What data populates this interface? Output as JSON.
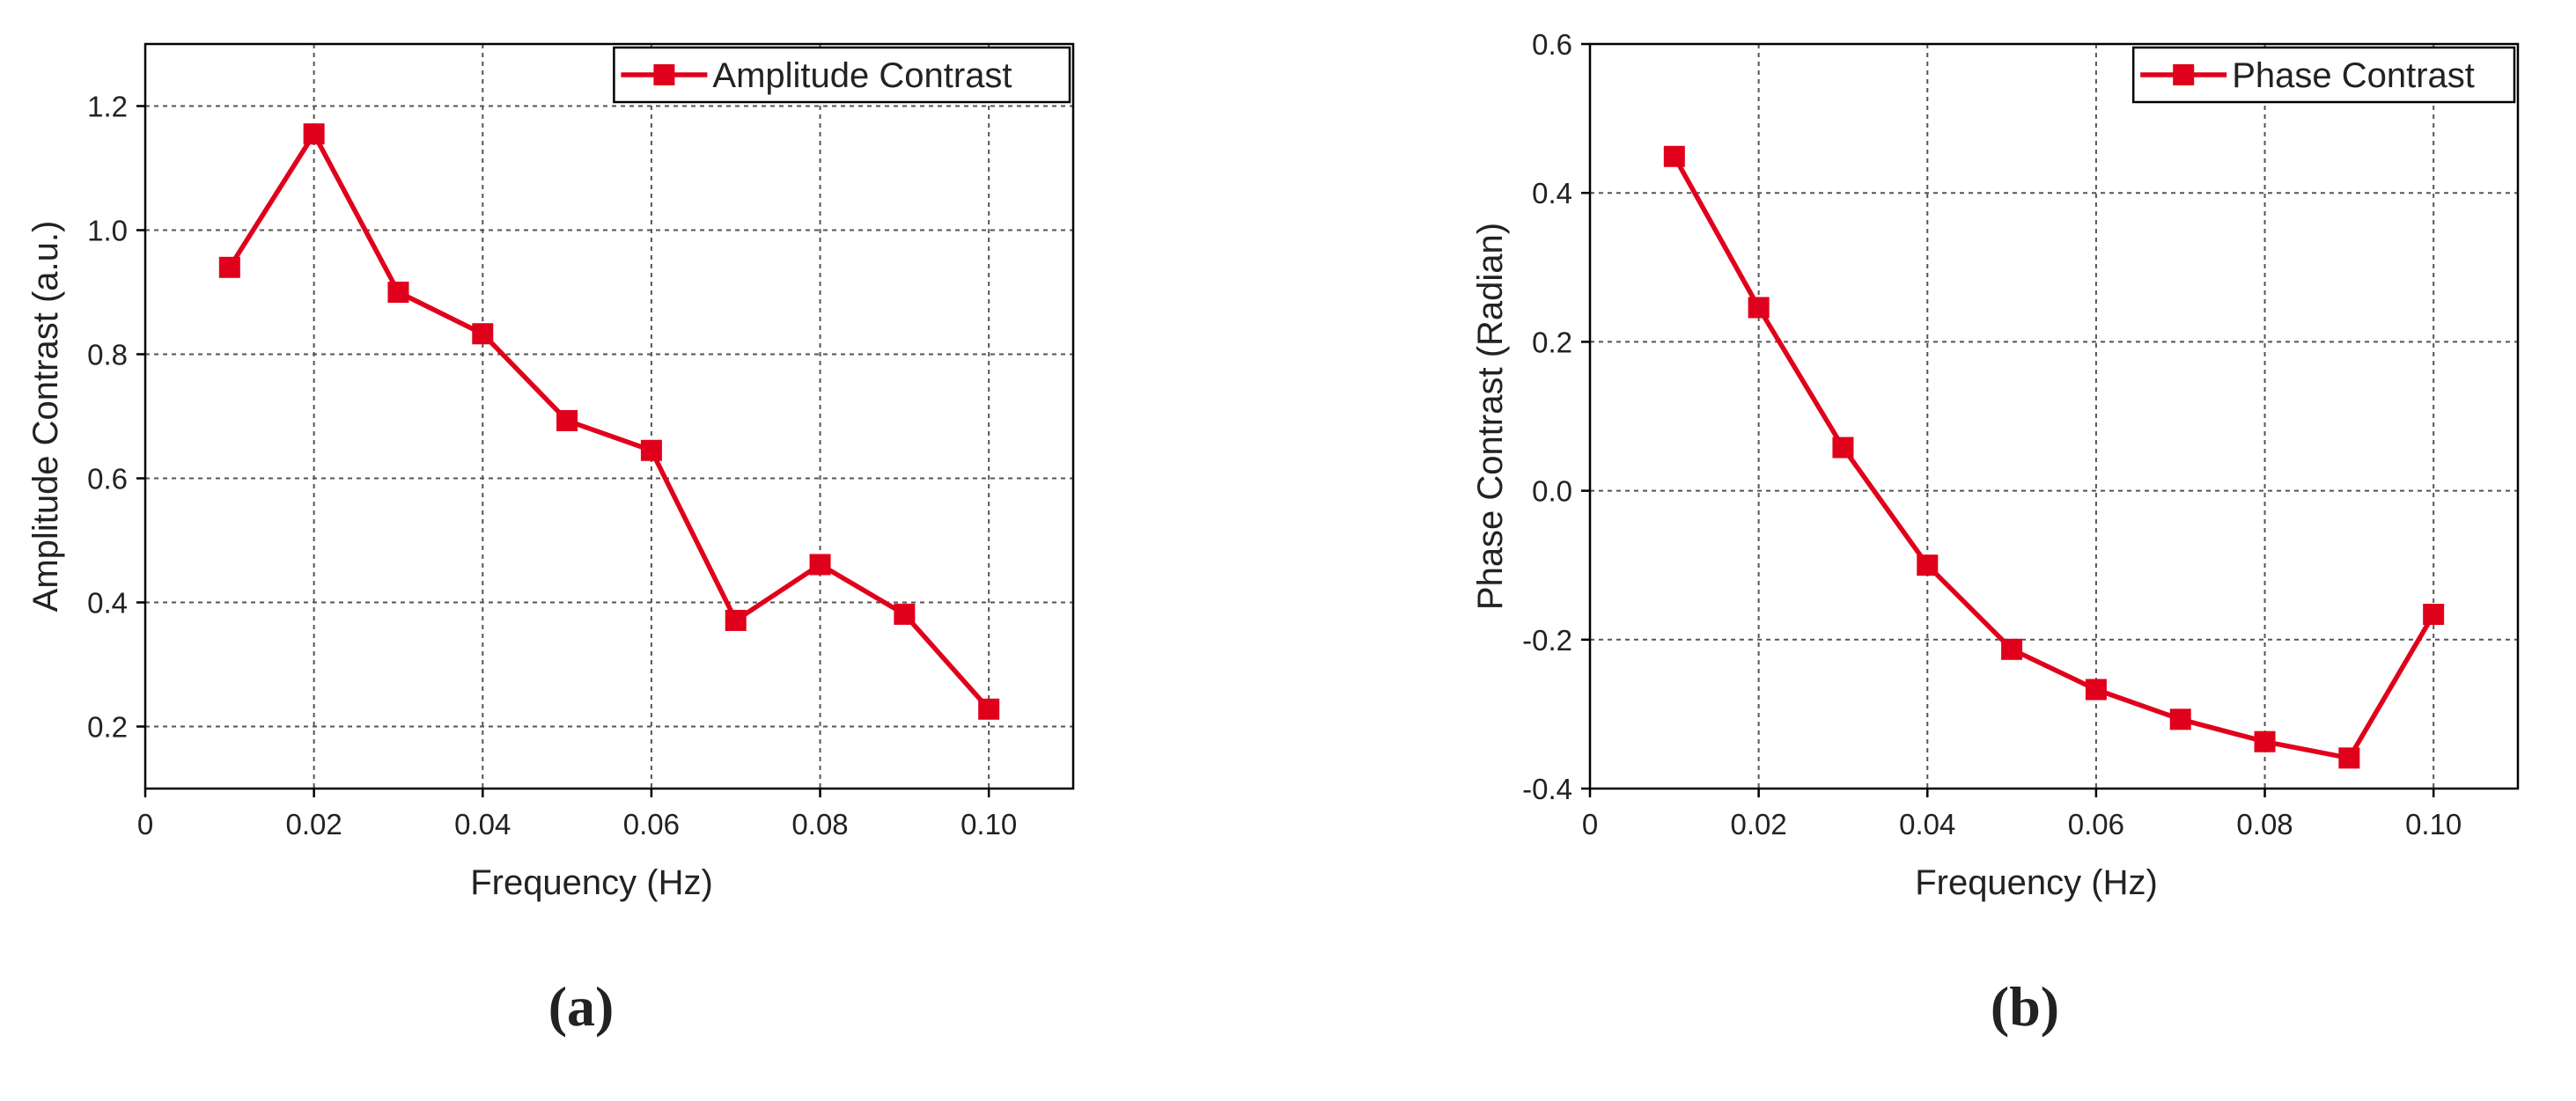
{
  "colors": {
    "series": "#e0001b",
    "grid": "#555555",
    "axis": "#000000"
  },
  "chart_data": [
    {
      "type": "line",
      "panel_label": "(a)",
      "xlabel": "Frequency (Hz)",
      "ylabel": "Amplitude Contrast (a.u.)",
      "xlim": [
        0,
        0.11
      ],
      "ylim": [
        0.1,
        1.3
      ],
      "xticks": [
        0,
        0.02,
        0.04,
        0.06,
        0.08,
        0.1
      ],
      "xtick_labels": [
        "0",
        "0.02",
        "0.04",
        "0.06",
        "0.08",
        "0.10"
      ],
      "yticks": [
        0.2,
        0.4,
        0.6,
        0.8,
        1.0,
        1.2
      ],
      "ytick_labels": [
        "0.2",
        "0.4",
        "0.6",
        "0.8",
        "1.0",
        "1.2"
      ],
      "grid": true,
      "legend_position": "top-right",
      "series": [
        {
          "name": "Amplitude Contrast",
          "marker": "square",
          "x": [
            0.01,
            0.02,
            0.03,
            0.04,
            0.05,
            0.06,
            0.07,
            0.08,
            0.09,
            0.1
          ],
          "y": [
            0.94,
            1.155,
            0.9,
            0.833,
            0.693,
            0.645,
            0.371,
            0.461,
            0.381,
            0.228
          ]
        }
      ]
    },
    {
      "type": "line",
      "panel_label": "(b)",
      "xlabel": "Frequency (Hz)",
      "ylabel": "Phase Contrast (Radian)",
      "xlim": [
        0,
        0.11
      ],
      "ylim": [
        -0.4,
        0.6
      ],
      "xticks": [
        0,
        0.02,
        0.04,
        0.06,
        0.08,
        0.1
      ],
      "xtick_labels": [
        "0",
        "0.02",
        "0.04",
        "0.06",
        "0.08",
        "0.10"
      ],
      "yticks": [
        -0.4,
        -0.2,
        0.0,
        0.2,
        0.4,
        0.6
      ],
      "ytick_labels": [
        "-0.4",
        "-0.2",
        "0.0",
        "0.2",
        "0.4",
        "0.6"
      ],
      "grid": true,
      "legend_position": "top-right",
      "series": [
        {
          "name": "Phase Contrast",
          "marker": "square",
          "x": [
            0.01,
            0.02,
            0.03,
            0.04,
            0.05,
            0.06,
            0.07,
            0.08,
            0.09,
            0.1
          ],
          "y": [
            0.449,
            0.246,
            0.058,
            -0.1,
            -0.213,
            -0.267,
            -0.307,
            -0.337,
            -0.359,
            -0.166
          ]
        }
      ]
    }
  ]
}
